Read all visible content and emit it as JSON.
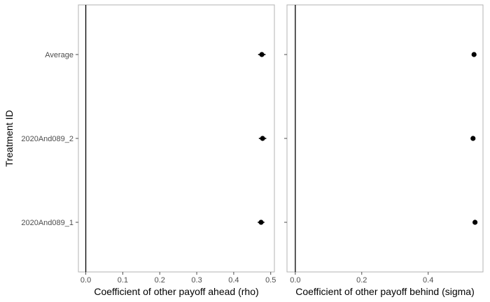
{
  "chart_data": [
    {
      "type": "scatter",
      "ylabel": "Treatment ID",
      "xlabel": "Coefficient of other payoff ahead (rho)",
      "categories": [
        "Average",
        "2020And089_2",
        "2020And089_1"
      ],
      "values": [
        0.476,
        0.478,
        0.474
      ],
      "error_low": [
        0.466,
        0.468,
        0.465
      ],
      "error_high": [
        0.486,
        0.488,
        0.483
      ],
      "xlim": [
        -0.02,
        0.51
      ],
      "xticks": [
        0.0,
        0.1,
        0.2,
        0.3,
        0.4,
        0.5
      ],
      "xtick_labels": [
        "0.0",
        "0.1",
        "0.2",
        "0.3",
        "0.4",
        "0.5"
      ],
      "reference_line_x": 0,
      "grid": false
    },
    {
      "type": "scatter",
      "xlabel": "Coefficient of other payoff behind (sigma)",
      "categories": [
        "Average",
        "2020And089_2",
        "2020And089_1"
      ],
      "values": [
        0.538,
        0.535,
        0.541
      ],
      "error_low": [
        0.532,
        0.529,
        0.535
      ],
      "error_high": [
        0.544,
        0.541,
        0.547
      ],
      "xlim": [
        -0.025,
        0.565
      ],
      "xticks": [
        0.0,
        0.2,
        0.4
      ],
      "xtick_labels": [
        "0.0",
        "0.2",
        "0.4"
      ],
      "reference_line_x": 0,
      "grid": false
    }
  ],
  "colors": {
    "point": "#000000",
    "panel_border": "#b3b3b3",
    "tick": "#4d4d4d"
  }
}
